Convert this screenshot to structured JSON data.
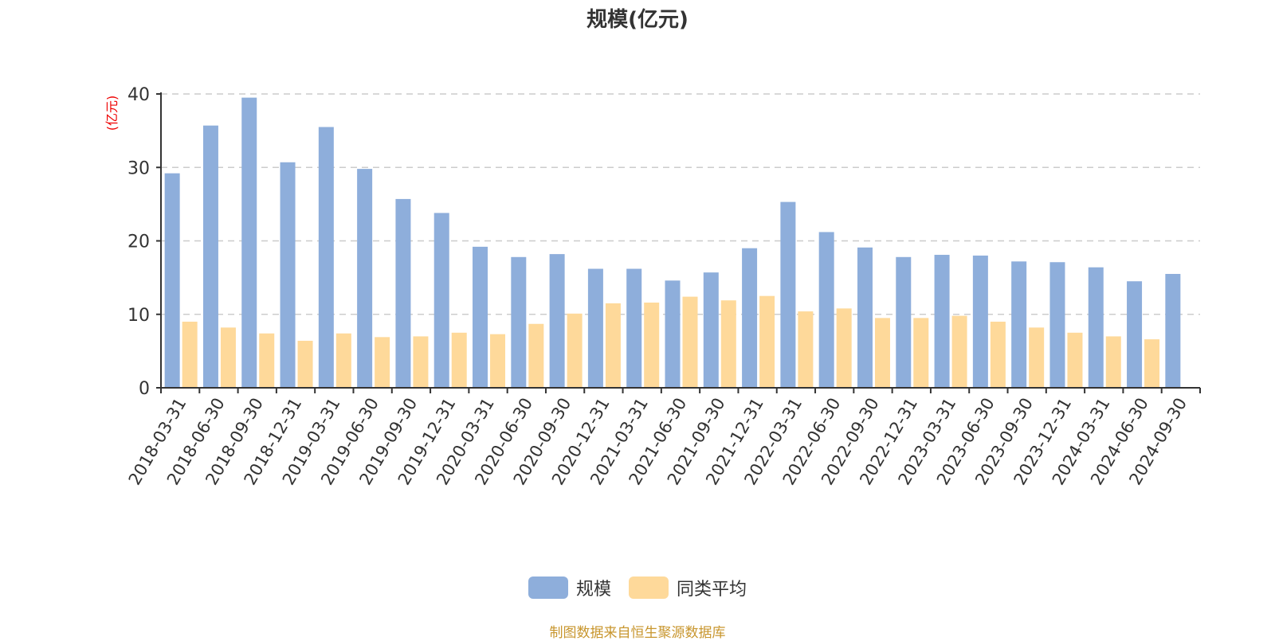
{
  "chart_data": {
    "type": "bar",
    "title": "规模(亿元)",
    "ylabel": "(亿元)",
    "xlabel": "",
    "ylim": [
      0,
      40
    ],
    "yticks": [
      0,
      10,
      20,
      30,
      40
    ],
    "grid": true,
    "legend_position": "bottom",
    "categories": [
      "2018-03-31",
      "2018-06-30",
      "2018-09-30",
      "2018-12-31",
      "2019-03-31",
      "2019-06-30",
      "2019-09-30",
      "2019-12-31",
      "2020-03-31",
      "2020-06-30",
      "2020-09-30",
      "2020-12-31",
      "2021-03-31",
      "2021-06-30",
      "2021-09-30",
      "2021-12-31",
      "2022-03-31",
      "2022-06-30",
      "2022-09-30",
      "2022-12-31",
      "2023-03-31",
      "2023-06-30",
      "2023-09-30",
      "2023-12-31",
      "2024-03-31",
      "2024-06-30",
      "2024-09-30"
    ],
    "series": [
      {
        "name": "规模",
        "color": "#8eaedb",
        "values": [
          29.2,
          35.7,
          39.5,
          30.7,
          35.5,
          29.8,
          25.7,
          23.8,
          19.2,
          17.8,
          18.2,
          16.2,
          16.2,
          14.6,
          15.7,
          19.0,
          25.3,
          21.2,
          19.1,
          17.8,
          18.1,
          18.0,
          17.2,
          17.1,
          16.4,
          14.5,
          15.5
        ]
      },
      {
        "name": "同类平均",
        "color": "#fed99a",
        "values": [
          9.0,
          8.2,
          7.4,
          6.4,
          7.4,
          6.9,
          7.0,
          7.5,
          7.3,
          8.7,
          10.1,
          11.5,
          11.6,
          12.4,
          11.9,
          12.5,
          10.4,
          10.8,
          9.5,
          9.5,
          9.8,
          9.0,
          8.2,
          7.5,
          7.0,
          6.6,
          null
        ]
      }
    ]
  },
  "title": "规模(亿元)",
  "y_unit": "(亿元)",
  "legend": [
    {
      "label": "规模",
      "color": "#8eaedb"
    },
    {
      "label": "同类平均",
      "color": "#fed99a"
    }
  ],
  "source": "制图数据来自恒生聚源数据库"
}
